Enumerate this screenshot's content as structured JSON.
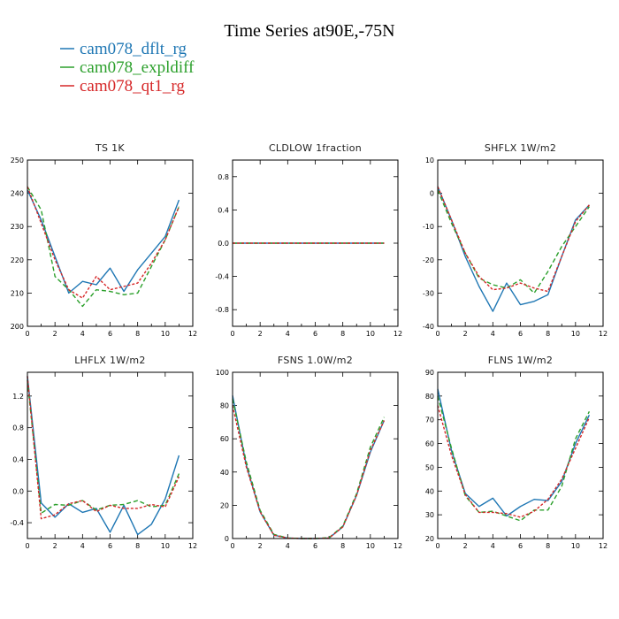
{
  "figure": {
    "title": "Time Series at90E,-75N",
    "legend": [
      {
        "label": "cam078_dflt_rg",
        "color": "#1f77b4"
      },
      {
        "label": "cam078_expldiff",
        "color": "#2ca02c"
      },
      {
        "label": "cam078_qt1_rg",
        "color": "#d62728"
      }
    ]
  },
  "chart_data": [
    {
      "type": "line",
      "title": "TS   1K",
      "x": [
        0,
        1,
        2,
        3,
        4,
        5,
        6,
        7,
        8,
        9,
        10,
        11
      ],
      "xlim": [
        0,
        12
      ],
      "xticks": [
        0,
        2,
        4,
        6,
        8,
        10,
        12
      ],
      "ylim": [
        200,
        250
      ],
      "yticks": [
        200,
        210,
        220,
        230,
        240,
        250
      ],
      "series": [
        {
          "name": "cam078_dflt_rg",
          "color": "#1f77b4",
          "dash": "",
          "values": [
            241,
            232,
            221,
            210,
            213.5,
            212.5,
            217.5,
            210.5,
            217,
            222,
            227,
            238
          ]
        },
        {
          "name": "cam078_expldiff",
          "color": "#2ca02c",
          "dash": "5,3",
          "values": [
            242,
            235,
            215,
            211,
            206,
            211,
            210.5,
            209.5,
            210,
            218,
            226,
            236
          ]
        },
        {
          "name": "cam078_qt1_rg",
          "color": "#d62728",
          "dash": "3,2",
          "values": [
            242,
            231,
            220,
            211,
            208.5,
            215,
            211,
            212,
            213,
            219,
            226,
            236
          ]
        }
      ]
    },
    {
      "type": "line",
      "title": "CLDLOW   1fraction",
      "x": [
        0,
        1,
        2,
        3,
        4,
        5,
        6,
        7,
        8,
        9,
        10,
        11
      ],
      "xlim": [
        0,
        12
      ],
      "xticks": [
        0,
        2,
        4,
        6,
        8,
        10,
        12
      ],
      "ylim": [
        -1,
        1
      ],
      "yticks": [
        -0.8,
        -0.4,
        0.0,
        0.4,
        0.8
      ],
      "ytick_labels": [
        "-0.8",
        "-0.4",
        "0.0",
        "0.4",
        "0.8"
      ],
      "series": [
        {
          "name": "cam078_dflt_rg",
          "color": "#1f77b4",
          "dash": "",
          "values": [
            0,
            0,
            0,
            0,
            0,
            0,
            0,
            0,
            0,
            0,
            0,
            0
          ]
        },
        {
          "name": "cam078_expldiff",
          "color": "#2ca02c",
          "dash": "5,3",
          "values": [
            0,
            0,
            0,
            0,
            0,
            0,
            0,
            0,
            0,
            0,
            0,
            0
          ]
        },
        {
          "name": "cam078_qt1_rg",
          "color": "#d62728",
          "dash": "3,2",
          "values": [
            0,
            0,
            0,
            0,
            0,
            0,
            0,
            0,
            0,
            0,
            0,
            0
          ]
        }
      ]
    },
    {
      "type": "line",
      "title": "SHFLX   1W/m2",
      "x": [
        0,
        1,
        2,
        3,
        4,
        5,
        6,
        7,
        8,
        9,
        10,
        11
      ],
      "xlim": [
        0,
        12
      ],
      "xticks": [
        0,
        2,
        4,
        6,
        8,
        10,
        12
      ],
      "ylim": [
        -40,
        10
      ],
      "yticks": [
        -40,
        -30,
        -20,
        -10,
        0,
        10
      ],
      "series": [
        {
          "name": "cam078_dflt_rg",
          "color": "#1f77b4",
          "dash": "",
          "values": [
            2,
            -8,
            -19,
            -28,
            -35.5,
            -27,
            -33.5,
            -32.5,
            -30.5,
            -19,
            -8,
            -3.5
          ]
        },
        {
          "name": "cam078_expldiff",
          "color": "#2ca02c",
          "dash": "5,3",
          "values": [
            1,
            -9,
            -18,
            -25.5,
            -27.5,
            -28.5,
            -26,
            -30,
            -23.5,
            -16,
            -10,
            -4
          ]
        },
        {
          "name": "cam078_qt1_rg",
          "color": "#d62728",
          "dash": "3,2",
          "values": [
            2,
            -8,
            -18,
            -25,
            -29,
            -28.5,
            -27,
            -28.5,
            -29.5,
            -19,
            -8.5,
            -3.5
          ]
        }
      ]
    },
    {
      "type": "line",
      "title": "LHFLX   1W/m2",
      "x": [
        0,
        1,
        2,
        3,
        4,
        5,
        6,
        7,
        8,
        9,
        10,
        11
      ],
      "xlim": [
        0,
        12
      ],
      "xticks": [
        0,
        2,
        4,
        6,
        8,
        10,
        12
      ],
      "ylim": [
        -0.6,
        1.5
      ],
      "yticks": [
        -0.4,
        0.0,
        0.4,
        0.8,
        1.2
      ],
      "ytick_labels": [
        "-0.4",
        "0.0",
        "0.4",
        "0.8",
        "1.2"
      ],
      "series": [
        {
          "name": "cam078_dflt_rg",
          "color": "#1f77b4",
          "dash": "",
          "values": [
            1.45,
            -0.15,
            -0.33,
            -0.16,
            -0.27,
            -0.22,
            -0.52,
            -0.18,
            -0.55,
            -0.42,
            -0.1,
            0.45
          ]
        },
        {
          "name": "cam078_expldiff",
          "color": "#2ca02c",
          "dash": "5,3",
          "values": [
            1.4,
            -0.28,
            -0.17,
            -0.18,
            -0.12,
            -0.24,
            -0.18,
            -0.17,
            -0.12,
            -0.2,
            -0.18,
            0.22
          ]
        },
        {
          "name": "cam078_qt1_rg",
          "color": "#d62728",
          "dash": "3,2",
          "values": [
            1.45,
            -0.35,
            -0.3,
            -0.16,
            -0.12,
            -0.26,
            -0.18,
            -0.22,
            -0.22,
            -0.17,
            -0.2,
            0.18
          ]
        }
      ]
    },
    {
      "type": "line",
      "title": "FSNS   1.0W/m2",
      "x": [
        0,
        1,
        2,
        3,
        4,
        5,
        6,
        7,
        8,
        9,
        10,
        11
      ],
      "xlim": [
        0,
        12
      ],
      "xticks": [
        0,
        2,
        4,
        6,
        8,
        10,
        12
      ],
      "ylim": [
        0,
        100
      ],
      "yticks": [
        0,
        20,
        40,
        60,
        80,
        100
      ],
      "series": [
        {
          "name": "cam078_dflt_rg",
          "color": "#1f77b4",
          "dash": "",
          "values": [
            86,
            44,
            16,
            2,
            0.3,
            0,
            0,
            0.3,
            7,
            26,
            52,
            71
          ]
        },
        {
          "name": "cam078_expldiff",
          "color": "#2ca02c",
          "dash": "5,3",
          "values": [
            84,
            46,
            17,
            2.5,
            0.3,
            0,
            0,
            0.5,
            7.5,
            27,
            55,
            73
          ]
        },
        {
          "name": "cam078_qt1_rg",
          "color": "#d62728",
          "dash": "3,2",
          "values": [
            80,
            43,
            16,
            2,
            0.3,
            0,
            0,
            0.3,
            7,
            26,
            53,
            71
          ]
        }
      ]
    },
    {
      "type": "line",
      "title": "FLNS   1W/m2",
      "x": [
        0,
        1,
        2,
        3,
        4,
        5,
        6,
        7,
        8,
        9,
        10,
        11
      ],
      "xlim": [
        0,
        12
      ],
      "xticks": [
        0,
        2,
        4,
        6,
        8,
        10,
        12
      ],
      "ylim": [
        20,
        90
      ],
      "yticks": [
        20,
        30,
        40,
        50,
        60,
        70,
        80,
        90
      ],
      "series": [
        {
          "name": "cam078_dflt_rg",
          "color": "#1f77b4",
          "dash": "",
          "values": [
            83,
            57,
            39,
            33.5,
            37,
            29.5,
            33.5,
            36.5,
            36,
            44,
            60,
            72
          ]
        },
        {
          "name": "cam078_expldiff",
          "color": "#2ca02c",
          "dash": "5,3",
          "values": [
            80,
            58,
            38,
            31,
            31.5,
            29.5,
            27.5,
            32,
            32,
            42,
            62,
            73.5
          ]
        },
        {
          "name": "cam078_qt1_rg",
          "color": "#d62728",
          "dash": "3,2",
          "values": [
            76,
            55,
            38.5,
            31,
            31,
            30.5,
            29,
            31.5,
            36.5,
            45,
            58,
            71
          ]
        }
      ]
    }
  ]
}
